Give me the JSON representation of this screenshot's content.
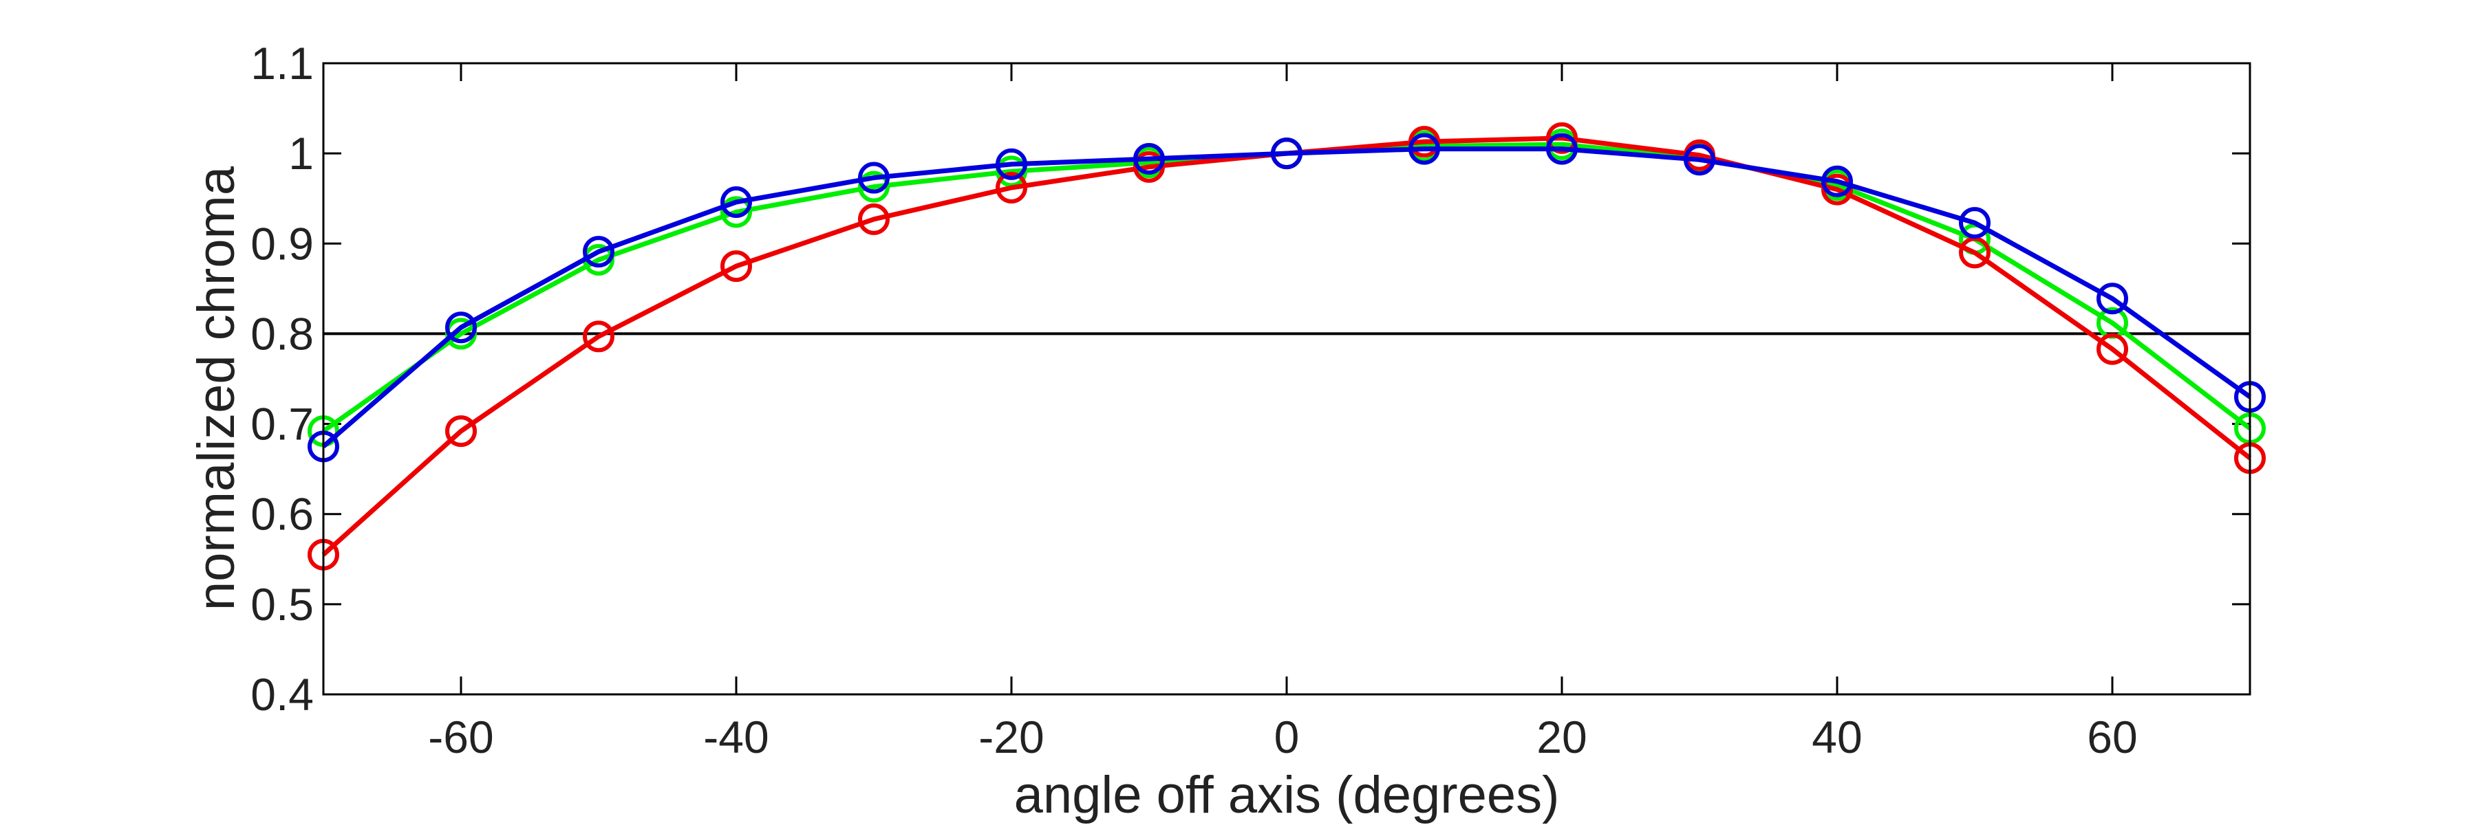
{
  "chart_data": {
    "type": "line",
    "title": "",
    "xlabel": "angle off axis (degrees)",
    "ylabel": "normalized chroma",
    "xlim": [
      -70,
      70
    ],
    "ylim": [
      0.4,
      1.1
    ],
    "xticks": [
      -60,
      -40,
      -20,
      0,
      20,
      40,
      60
    ],
    "xtick_labels": [
      "-60",
      "-40",
      "-20",
      "0",
      "20",
      "40",
      "60"
    ],
    "yticks": [
      0.4,
      0.5,
      0.6,
      0.7,
      0.8,
      0.9,
      1.0,
      1.1
    ],
    "ytick_labels": [
      "0.4",
      "0.5",
      "0.6",
      "0.7",
      "0.8",
      "0.9",
      "1",
      "1.1"
    ],
    "grid": false,
    "legend": "none",
    "reference_line": {
      "y": 0.8,
      "color": "#000000"
    },
    "x": [
      -70,
      -60,
      -50,
      -40,
      -30,
      -20,
      -10,
      0,
      10,
      20,
      30,
      40,
      50,
      60,
      70
    ],
    "series": [
      {
        "color": "#00ee00",
        "values": [
          0.692,
          0.8,
          0.882,
          0.935,
          0.963,
          0.98,
          0.99,
          1.0,
          1.008,
          1.01,
          0.995,
          0.965,
          0.905,
          0.812,
          0.695
        ]
      },
      {
        "color": "#ee0000",
        "values": [
          0.555,
          0.692,
          0.797,
          0.875,
          0.927,
          0.962,
          0.985,
          1.0,
          1.013,
          1.017,
          0.998,
          0.96,
          0.89,
          0.783,
          0.662
        ]
      },
      {
        "color": "#0000dd",
        "values": [
          0.675,
          0.807,
          0.891,
          0.946,
          0.973,
          0.988,
          0.994,
          1.0,
          1.005,
          1.005,
          0.993,
          0.969,
          0.923,
          0.839,
          0.73
        ]
      }
    ]
  }
}
